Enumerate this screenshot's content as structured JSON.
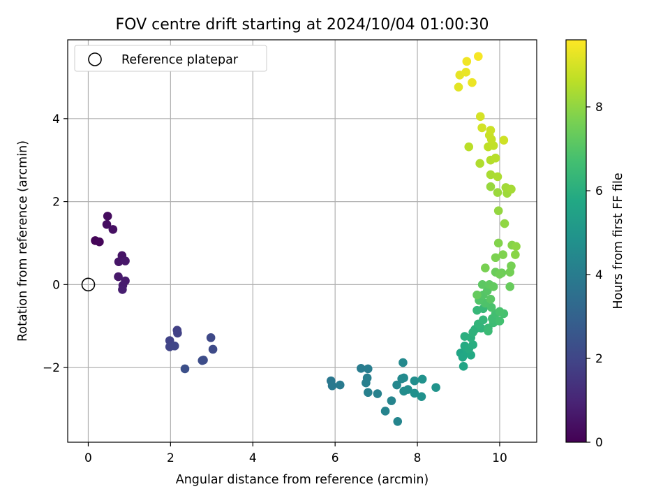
{
  "chart_data": {
    "type": "scatter",
    "title": "FOV centre drift starting at 2024/10/04 01:00:30",
    "xlabel": "Angular distance from reference (arcmin)",
    "ylabel": "Rotation from reference (arcmin)",
    "xlim": [
      -0.5,
      10.9
    ],
    "ylim": [
      -3.8,
      5.9
    ],
    "xticks": [
      0,
      2,
      4,
      6,
      8,
      10
    ],
    "yticks": [
      -2,
      0,
      2,
      4
    ],
    "grid": true,
    "legend": {
      "placement": "top-left",
      "entries": [
        "Reference platepar"
      ]
    },
    "reference_point": {
      "x": 0,
      "y": 0,
      "label": "Reference platepar"
    },
    "colorbar": {
      "label": "Hours from first FF file",
      "range": [
        0,
        9.6
      ],
      "ticks": [
        0,
        2,
        4,
        6,
        8
      ],
      "colormap": "viridis"
    },
    "points": [
      {
        "x": 0.47,
        "y": 1.65,
        "c": 0.3
      },
      {
        "x": 0.45,
        "y": 1.45,
        "c": 0.35
      },
      {
        "x": 0.6,
        "y": 1.33,
        "c": 0.4
      },
      {
        "x": 0.17,
        "y": 1.06,
        "c": 0.1
      },
      {
        "x": 0.27,
        "y": 1.03,
        "c": 0.15
      },
      {
        "x": 0.82,
        "y": 0.7,
        "c": 0.5
      },
      {
        "x": 0.74,
        "y": 0.55,
        "c": 0.55
      },
      {
        "x": 0.9,
        "y": 0.57,
        "c": 0.6
      },
      {
        "x": 0.73,
        "y": 0.19,
        "c": 0.65
      },
      {
        "x": 0.9,
        "y": 0.09,
        "c": 0.7
      },
      {
        "x": 0.84,
        "y": -0.02,
        "c": 0.75
      },
      {
        "x": 0.83,
        "y": -0.12,
        "c": 0.8
      },
      {
        "x": 2.16,
        "y": -1.1,
        "c": 1.8
      },
      {
        "x": 2.17,
        "y": -1.17,
        "c": 1.85
      },
      {
        "x": 1.98,
        "y": -1.35,
        "c": 1.9
      },
      {
        "x": 1.98,
        "y": -1.5,
        "c": 1.95
      },
      {
        "x": 2.1,
        "y": -1.48,
        "c": 2.0
      },
      {
        "x": 2.98,
        "y": -1.28,
        "c": 2.1
      },
      {
        "x": 3.03,
        "y": -1.56,
        "c": 2.15
      },
      {
        "x": 2.8,
        "y": -1.82,
        "c": 2.2
      },
      {
        "x": 2.77,
        "y": -1.83,
        "c": 2.25
      },
      {
        "x": 2.35,
        "y": -2.03,
        "c": 2.3
      },
      {
        "x": 5.9,
        "y": -2.32,
        "c": 3.8
      },
      {
        "x": 5.93,
        "y": -2.44,
        "c": 3.85
      },
      {
        "x": 6.12,
        "y": -2.42,
        "c": 3.9
      },
      {
        "x": 6.63,
        "y": -2.02,
        "c": 4.0
      },
      {
        "x": 6.8,
        "y": -2.03,
        "c": 4.05
      },
      {
        "x": 6.78,
        "y": -2.25,
        "c": 4.1
      },
      {
        "x": 6.75,
        "y": -2.37,
        "c": 4.1
      },
      {
        "x": 6.8,
        "y": -2.6,
        "c": 4.15
      },
      {
        "x": 7.03,
        "y": -2.63,
        "c": 4.2
      },
      {
        "x": 7.22,
        "y": -3.05,
        "c": 4.25
      },
      {
        "x": 7.37,
        "y": -2.8,
        "c": 4.3
      },
      {
        "x": 7.52,
        "y": -3.3,
        "c": 4.35
      },
      {
        "x": 7.5,
        "y": -2.42,
        "c": 4.4
      },
      {
        "x": 7.62,
        "y": -2.27,
        "c": 4.45
      },
      {
        "x": 7.65,
        "y": -1.88,
        "c": 4.5
      },
      {
        "x": 7.67,
        "y": -2.25,
        "c": 4.55
      },
      {
        "x": 7.67,
        "y": -2.57,
        "c": 4.6
      },
      {
        "x": 7.77,
        "y": -2.53,
        "c": 4.65
      },
      {
        "x": 7.93,
        "y": -2.32,
        "c": 4.7
      },
      {
        "x": 7.93,
        "y": -2.62,
        "c": 4.75
      },
      {
        "x": 8.1,
        "y": -2.7,
        "c": 4.8
      },
      {
        "x": 8.12,
        "y": -2.28,
        "c": 4.85
      },
      {
        "x": 8.45,
        "y": -2.48,
        "c": 4.9
      },
      {
        "x": 9.12,
        "y": -1.97,
        "c": 5.6
      },
      {
        "x": 9.05,
        "y": -1.65,
        "c": 5.65
      },
      {
        "x": 9.1,
        "y": -1.75,
        "c": 5.7
      },
      {
        "x": 9.2,
        "y": -1.62,
        "c": 5.75
      },
      {
        "x": 9.3,
        "y": -1.7,
        "c": 5.8
      },
      {
        "x": 9.15,
        "y": -1.48,
        "c": 5.85
      },
      {
        "x": 9.25,
        "y": -1.55,
        "c": 5.9
      },
      {
        "x": 9.35,
        "y": -1.45,
        "c": 5.95
      },
      {
        "x": 9.15,
        "y": -1.25,
        "c": 6.0
      },
      {
        "x": 9.3,
        "y": -1.28,
        "c": 6.05
      },
      {
        "x": 9.4,
        "y": -1.08,
        "c": 6.1
      },
      {
        "x": 9.35,
        "y": -1.15,
        "c": 6.15
      },
      {
        "x": 9.55,
        "y": -1.05,
        "c": 6.2
      },
      {
        "x": 9.48,
        "y": -0.95,
        "c": 6.25
      },
      {
        "x": 9.6,
        "y": -0.85,
        "c": 6.3
      },
      {
        "x": 9.45,
        "y": -0.62,
        "c": 6.35
      },
      {
        "x": 9.6,
        "y": -0.58,
        "c": 6.4
      },
      {
        "x": 9.72,
        "y": -1.05,
        "c": 6.45
      },
      {
        "x": 9.72,
        "y": -1.12,
        "c": 6.5
      },
      {
        "x": 9.85,
        "y": -0.92,
        "c": 6.55
      },
      {
        "x": 9.82,
        "y": -0.82,
        "c": 6.6
      },
      {
        "x": 9.9,
        "y": -0.7,
        "c": 6.65
      },
      {
        "x": 10.0,
        "y": -0.88,
        "c": 6.7
      },
      {
        "x": 10.1,
        "y": -0.7,
        "c": 6.75
      },
      {
        "x": 10.0,
        "y": -0.65,
        "c": 6.8
      },
      {
        "x": 9.8,
        "y": -0.55,
        "c": 6.85
      },
      {
        "x": 9.65,
        "y": -0.45,
        "c": 6.9
      },
      {
        "x": 9.5,
        "y": -0.38,
        "c": 6.95
      },
      {
        "x": 9.6,
        "y": -0.25,
        "c": 7.0
      },
      {
        "x": 9.7,
        "y": -0.15,
        "c": 7.05
      },
      {
        "x": 9.78,
        "y": -0.35,
        "c": 7.1
      },
      {
        "x": 9.58,
        "y": 0.0,
        "c": 7.15
      },
      {
        "x": 9.75,
        "y": 0.0,
        "c": 7.2
      },
      {
        "x": 9.85,
        "y": -0.05,
        "c": 7.25
      },
      {
        "x": 9.45,
        "y": -0.25,
        "c": 7.3
      },
      {
        "x": 10.25,
        "y": -0.05,
        "c": 7.35
      },
      {
        "x": 9.9,
        "y": 0.3,
        "c": 7.4
      },
      {
        "x": 10.05,
        "y": 0.28,
        "c": 7.45
      },
      {
        "x": 10.0,
        "y": 0.25,
        "c": 7.5
      },
      {
        "x": 10.25,
        "y": 0.3,
        "c": 7.55
      },
      {
        "x": 10.28,
        "y": 0.45,
        "c": 7.6
      },
      {
        "x": 9.65,
        "y": 0.4,
        "c": 7.65
      },
      {
        "x": 9.9,
        "y": 0.65,
        "c": 7.7
      },
      {
        "x": 10.08,
        "y": 0.72,
        "c": 7.75
      },
      {
        "x": 9.97,
        "y": 1.0,
        "c": 7.8
      },
      {
        "x": 10.3,
        "y": 0.95,
        "c": 7.85
      },
      {
        "x": 10.38,
        "y": 0.72,
        "c": 7.9
      },
      {
        "x": 10.4,
        "y": 0.92,
        "c": 7.95
      },
      {
        "x": 10.12,
        "y": 1.47,
        "c": 8.0
      },
      {
        "x": 9.97,
        "y": 1.78,
        "c": 8.05
      },
      {
        "x": 9.78,
        "y": 2.36,
        "c": 8.1
      },
      {
        "x": 9.95,
        "y": 2.22,
        "c": 8.15
      },
      {
        "x": 10.18,
        "y": 2.2,
        "c": 8.2
      },
      {
        "x": 10.15,
        "y": 2.34,
        "c": 8.25
      },
      {
        "x": 10.28,
        "y": 2.3,
        "c": 8.3
      },
      {
        "x": 9.78,
        "y": 2.65,
        "c": 8.35
      },
      {
        "x": 9.95,
        "y": 2.6,
        "c": 8.4
      },
      {
        "x": 9.52,
        "y": 2.92,
        "c": 8.45
      },
      {
        "x": 9.78,
        "y": 3.0,
        "c": 8.5
      },
      {
        "x": 9.9,
        "y": 3.05,
        "c": 8.55
      },
      {
        "x": 9.25,
        "y": 3.32,
        "c": 8.6
      },
      {
        "x": 9.72,
        "y": 3.32,
        "c": 8.65
      },
      {
        "x": 9.85,
        "y": 3.35,
        "c": 8.7
      },
      {
        "x": 9.8,
        "y": 3.5,
        "c": 8.75
      },
      {
        "x": 9.75,
        "y": 3.6,
        "c": 8.8
      },
      {
        "x": 9.78,
        "y": 3.72,
        "c": 8.85
      },
      {
        "x": 10.1,
        "y": 3.48,
        "c": 8.9
      },
      {
        "x": 9.57,
        "y": 3.78,
        "c": 8.95
      },
      {
        "x": 9.53,
        "y": 4.05,
        "c": 9.0
      },
      {
        "x": 9.0,
        "y": 4.76,
        "c": 9.2
      },
      {
        "x": 9.03,
        "y": 5.05,
        "c": 9.25
      },
      {
        "x": 9.18,
        "y": 5.12,
        "c": 9.3
      },
      {
        "x": 9.33,
        "y": 4.87,
        "c": 9.35
      },
      {
        "x": 9.2,
        "y": 5.38,
        "c": 9.4
      },
      {
        "x": 9.48,
        "y": 5.5,
        "c": 9.5
      }
    ]
  }
}
